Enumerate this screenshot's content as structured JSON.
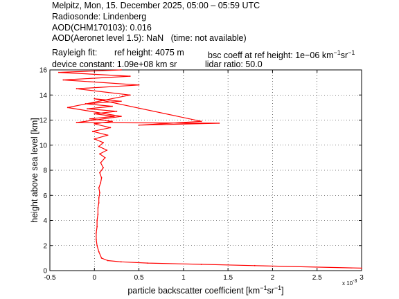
{
  "header": {
    "line1": "Melpitz, Mon, 15. December 2025, 05:00 – 05:59 UTC",
    "line2": "Radiosonde: Lindenberg",
    "line3": "AOD(CHM170103): 0.016",
    "line4": "AOD(Aeronet level 1.5): NaN   (time: not available)",
    "line5a": "Rayleigh fit:",
    "line5b": "ref height: 4075 m",
    "line5c": "bsc coeff at ref height: 1e−06 km",
    "line5c_sup1": "−1",
    "line5c_mid": "sr",
    "line5c_sup2": "−1",
    "line6a": "device constant: 1.09e+08 km sr",
    "line6b": "lidar ratio: 50.0"
  },
  "chart_data": {
    "type": "line",
    "title": "",
    "xlabel": "particle backscatter coefficient [km^-1 sr^-1]",
    "xlabel_main": "particle backscatter coefficient [km",
    "xlabel_sup1": "−1",
    "xlabel_mid": "sr",
    "xlabel_sup2": "−1",
    "xlabel_end": "]",
    "ylabel": "height above sea level [km]",
    "x_multiplier": "x 10",
    "x_multiplier_exp": "-3",
    "xlim": [
      -0.5,
      3
    ],
    "ylim": [
      0,
      16
    ],
    "xticks": [
      "-0.5",
      "0",
      "0.5",
      "1",
      "1.5",
      "2",
      "2.5",
      "3"
    ],
    "yticks": [
      "0",
      "2",
      "4",
      "6",
      "8",
      "10",
      "12",
      "14",
      "16"
    ],
    "grid": true,
    "color": "#ff0000",
    "series": [
      {
        "x": [
          3.0,
          1.8,
          1.2,
          0.6,
          0.3,
          0.15,
          0.08,
          0.05,
          0.03,
          0.02,
          0.02,
          0.03,
          0.03,
          0.04,
          0.04,
          0.05,
          0.05,
          0.06,
          0.05,
          0.07,
          0.08,
          0.06,
          0.1,
          0.07,
          0.12,
          0.06,
          0.14,
          0.05,
          0.1,
          0.0,
          0.15,
          -0.02,
          0.18,
          0.0,
          0.2,
          -0.05,
          0.22,
          0.0,
          0.25,
          -0.08,
          0.2,
          -0.1,
          0.3,
          0.0,
          1.2,
          0.5,
          1.4,
          -0.2,
          0.3,
          -0.3,
          0.4,
          -0.2,
          0.5,
          -0.35,
          0.4,
          -0.4,
          0.3
        ],
        "y": [
          0.2,
          0.4,
          0.5,
          0.6,
          0.7,
          0.8,
          1.0,
          1.5,
          2.0,
          2.5,
          3.0,
          3.5,
          4.0,
          4.5,
          5.0,
          5.4,
          5.8,
          6.2,
          6.6,
          7.0,
          7.4,
          7.8,
          8.2,
          8.6,
          9.0,
          9.3,
          9.6,
          9.9,
          10.2,
          10.5,
          10.8,
          11.1,
          11.4,
          11.7,
          11.9,
          12.1,
          12.3,
          12.5,
          12.7,
          12.9,
          13.1,
          13.3,
          13.5,
          13.7,
          11.9,
          11.6,
          11.75,
          11.8,
          12.3,
          13.0,
          14.0,
          14.5,
          14.8,
          15.2,
          15.5,
          15.8,
          16.0
        ]
      }
    ]
  }
}
